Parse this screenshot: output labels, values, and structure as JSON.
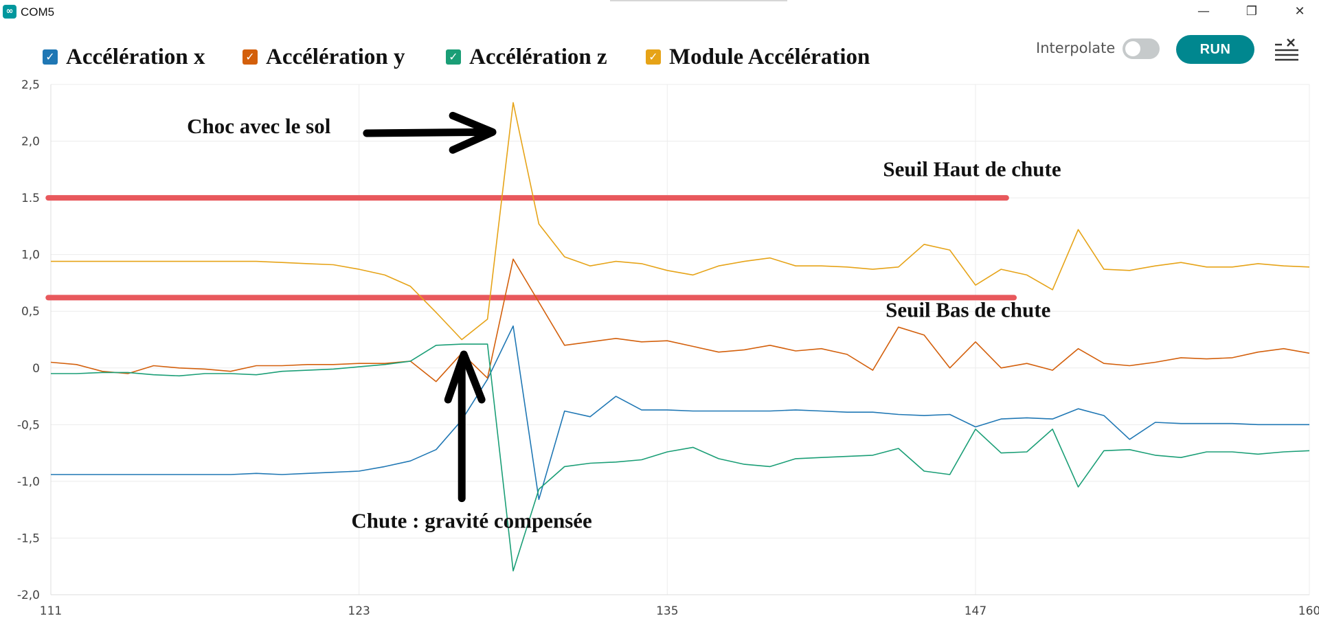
{
  "window": {
    "title": "COM5",
    "app_icon": "arduino-icon"
  },
  "window_controls": {
    "minimize": "—",
    "maximize": "❐",
    "close": "✕"
  },
  "legend": [
    {
      "label": "Accélération x",
      "color": "#1f77b4",
      "checked": true
    },
    {
      "label": "Accélération y",
      "color": "#d35f0b",
      "checked": true
    },
    {
      "label": "Accélération z",
      "color": "#1a9e76",
      "checked": true
    },
    {
      "label": "Module Accélération",
      "color": "#e6a317",
      "checked": true
    }
  ],
  "controls": {
    "interpolate_label": "Interpolate",
    "interpolate_on": false,
    "run_label": "RUN",
    "clear_icon": "clear-list-icon"
  },
  "chart_data": {
    "type": "line",
    "title": "",
    "xlabel": "",
    "ylabel": "",
    "xlim": [
      111,
      160
    ],
    "ylim": [
      -2.0,
      2.5
    ],
    "x_ticks": [
      "111",
      "123",
      "135",
      "147",
      "160"
    ],
    "y_ticks": [
      "2,5",
      "2,0",
      "1.5",
      "1,0",
      "0,5",
      "0",
      "-0,5",
      "-1,0",
      "-1,5",
      "-2,0"
    ],
    "x": [
      111,
      112,
      113,
      114,
      115,
      116,
      117,
      118,
      119,
      120,
      121,
      122,
      123,
      124,
      125,
      126,
      127,
      128,
      129,
      130,
      131,
      132,
      133,
      134,
      135,
      136,
      137,
      138,
      139,
      140,
      141,
      142,
      143,
      144,
      145,
      146,
      147,
      148,
      149,
      150,
      151,
      152,
      153,
      154,
      155,
      156,
      157,
      158,
      159,
      160
    ],
    "series": [
      {
        "name": "Accélération x",
        "color": "#1f77b4",
        "values": [
          -0.94,
          -0.94,
          -0.94,
          -0.94,
          -0.94,
          -0.94,
          -0.94,
          -0.94,
          -0.93,
          -0.94,
          -0.93,
          -0.92,
          -0.91,
          -0.87,
          -0.82,
          -0.72,
          -0.46,
          -0.1,
          0.37,
          -1.16,
          -0.38,
          -0.43,
          -0.25,
          -0.37,
          -0.37,
          -0.38,
          -0.38,
          -0.38,
          -0.38,
          -0.37,
          -0.38,
          -0.39,
          -0.39,
          -0.41,
          -0.42,
          -0.41,
          -0.52,
          -0.45,
          -0.44,
          -0.45,
          -0.36,
          -0.42,
          -0.63,
          -0.48,
          -0.49,
          -0.49,
          -0.49,
          -0.5,
          -0.5,
          -0.5
        ]
      },
      {
        "name": "Accélération y",
        "color": "#d35f0b",
        "values": [
          0.05,
          0.03,
          -0.03,
          -0.05,
          0.02,
          0.0,
          -0.01,
          -0.03,
          0.02,
          0.02,
          0.03,
          0.03,
          0.04,
          0.04,
          0.06,
          -0.12,
          0.13,
          -0.09,
          0.96,
          0.58,
          0.2,
          0.23,
          0.26,
          0.23,
          0.24,
          0.19,
          0.14,
          0.16,
          0.2,
          0.15,
          0.17,
          0.12,
          -0.02,
          0.36,
          0.29,
          0.0,
          0.23,
          0.0,
          0.04,
          -0.02,
          0.17,
          0.04,
          0.02,
          0.05,
          0.09,
          0.08,
          0.09,
          0.14,
          0.17,
          0.13
        ]
      },
      {
        "name": "Accélération z",
        "color": "#1a9e76",
        "values": [
          -0.05,
          -0.05,
          -0.04,
          -0.04,
          -0.06,
          -0.07,
          -0.05,
          -0.05,
          -0.06,
          -0.03,
          -0.02,
          -0.01,
          0.01,
          0.03,
          0.06,
          0.2,
          0.21,
          0.21,
          -1.79,
          -1.07,
          -0.87,
          -0.84,
          -0.83,
          -0.81,
          -0.74,
          -0.7,
          -0.8,
          -0.85,
          -0.87,
          -0.8,
          -0.79,
          -0.78,
          -0.77,
          -0.71,
          -0.91,
          -0.94,
          -0.54,
          -0.75,
          -0.74,
          -0.54,
          -1.05,
          -0.73,
          -0.72,
          -0.77,
          -0.79,
          -0.74,
          -0.74,
          -0.76,
          -0.74,
          -0.73
        ]
      },
      {
        "name": "Module Accélération",
        "color": "#e6a317",
        "values": [
          0.94,
          0.94,
          0.94,
          0.94,
          0.94,
          0.94,
          0.94,
          0.94,
          0.94,
          0.93,
          0.92,
          0.91,
          0.87,
          0.82,
          0.72,
          0.49,
          0.25,
          0.43,
          2.34,
          1.27,
          0.98,
          0.9,
          0.94,
          0.92,
          0.86,
          0.82,
          0.9,
          0.94,
          0.97,
          0.9,
          0.9,
          0.89,
          0.87,
          0.89,
          1.09,
          1.04,
          0.73,
          0.87,
          0.82,
          0.69,
          1.22,
          0.87,
          0.86,
          0.9,
          0.93,
          0.89,
          0.89,
          0.92,
          0.9,
          0.89
        ]
      }
    ],
    "threshold_lines": [
      {
        "label": "Seuil Haut de chute",
        "y": 1.5,
        "x_from": 110.9,
        "x_to": 148.2,
        "color": "#e8585c"
      },
      {
        "label": "Seuil Bas de chute",
        "y": 0.62,
        "x_from": 110.9,
        "x_to": 148.5,
        "color": "#e8585c"
      }
    ],
    "annotations": [
      {
        "text": "Choc avec le sol",
        "x": 116.3,
        "y": 2.07
      },
      {
        "text": "Seuil Haut de chute",
        "x": 143.4,
        "y": 1.69
      },
      {
        "text": "Seuil Bas de chute",
        "x": 143.5,
        "y": 0.45
      },
      {
        "text": "Chute : gravité compensée",
        "x": 122.7,
        "y": -1.41
      }
    ],
    "arrows": [
      {
        "from": [
          123.3,
          2.07
        ],
        "to": [
          128.2,
          2.08
        ]
      },
      {
        "from": [
          127.0,
          -1.15
        ],
        "to": [
          127.0,
          0.12
        ]
      }
    ]
  }
}
